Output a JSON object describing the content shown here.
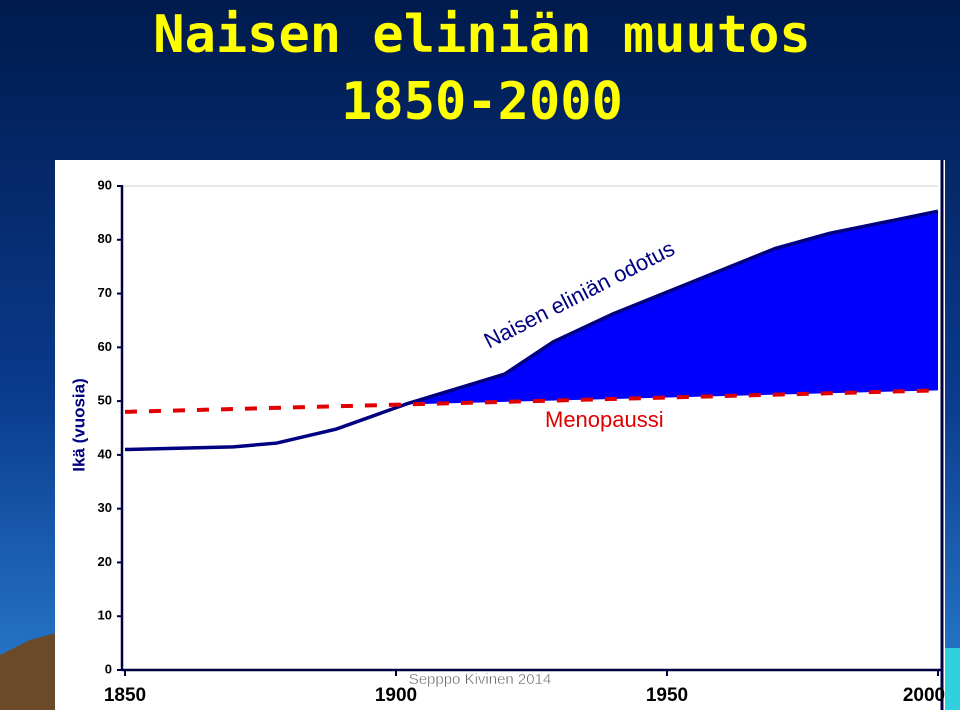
{
  "chart_data": {
    "type": "line",
    "title": "Naisen eliniän muutos",
    "subtitle": "1850-2000",
    "ylabel": "Ikä (vuosia)",
    "credit": "Sepppo Kivinen 2014",
    "xlim": [
      1850,
      2000
    ],
    "xticks": [
      1850,
      1900,
      1950,
      2000
    ],
    "ylim": [
      0,
      90
    ],
    "yticks": [
      0,
      10,
      20,
      30,
      40,
      50,
      60,
      70,
      80,
      90
    ],
    "series": [
      {
        "name": "Naisen eliniän odotus",
        "color": "#000080",
        "fill": "#0000ff",
        "x": [
          1850,
          1870,
          1878,
          1889,
          1902,
          1920,
          1929,
          1940,
          1970,
          1980,
          2000
        ],
        "values": [
          41,
          41.5,
          42.2,
          44.8,
          49.5,
          55,
          61,
          66.2,
          78.4,
          81.2,
          85.3
        ]
      },
      {
        "name": "Menopaussi",
        "color": "#e00000",
        "dashed": true,
        "x": [
          1850,
          2000
        ],
        "values": [
          48,
          52
        ]
      }
    ]
  }
}
